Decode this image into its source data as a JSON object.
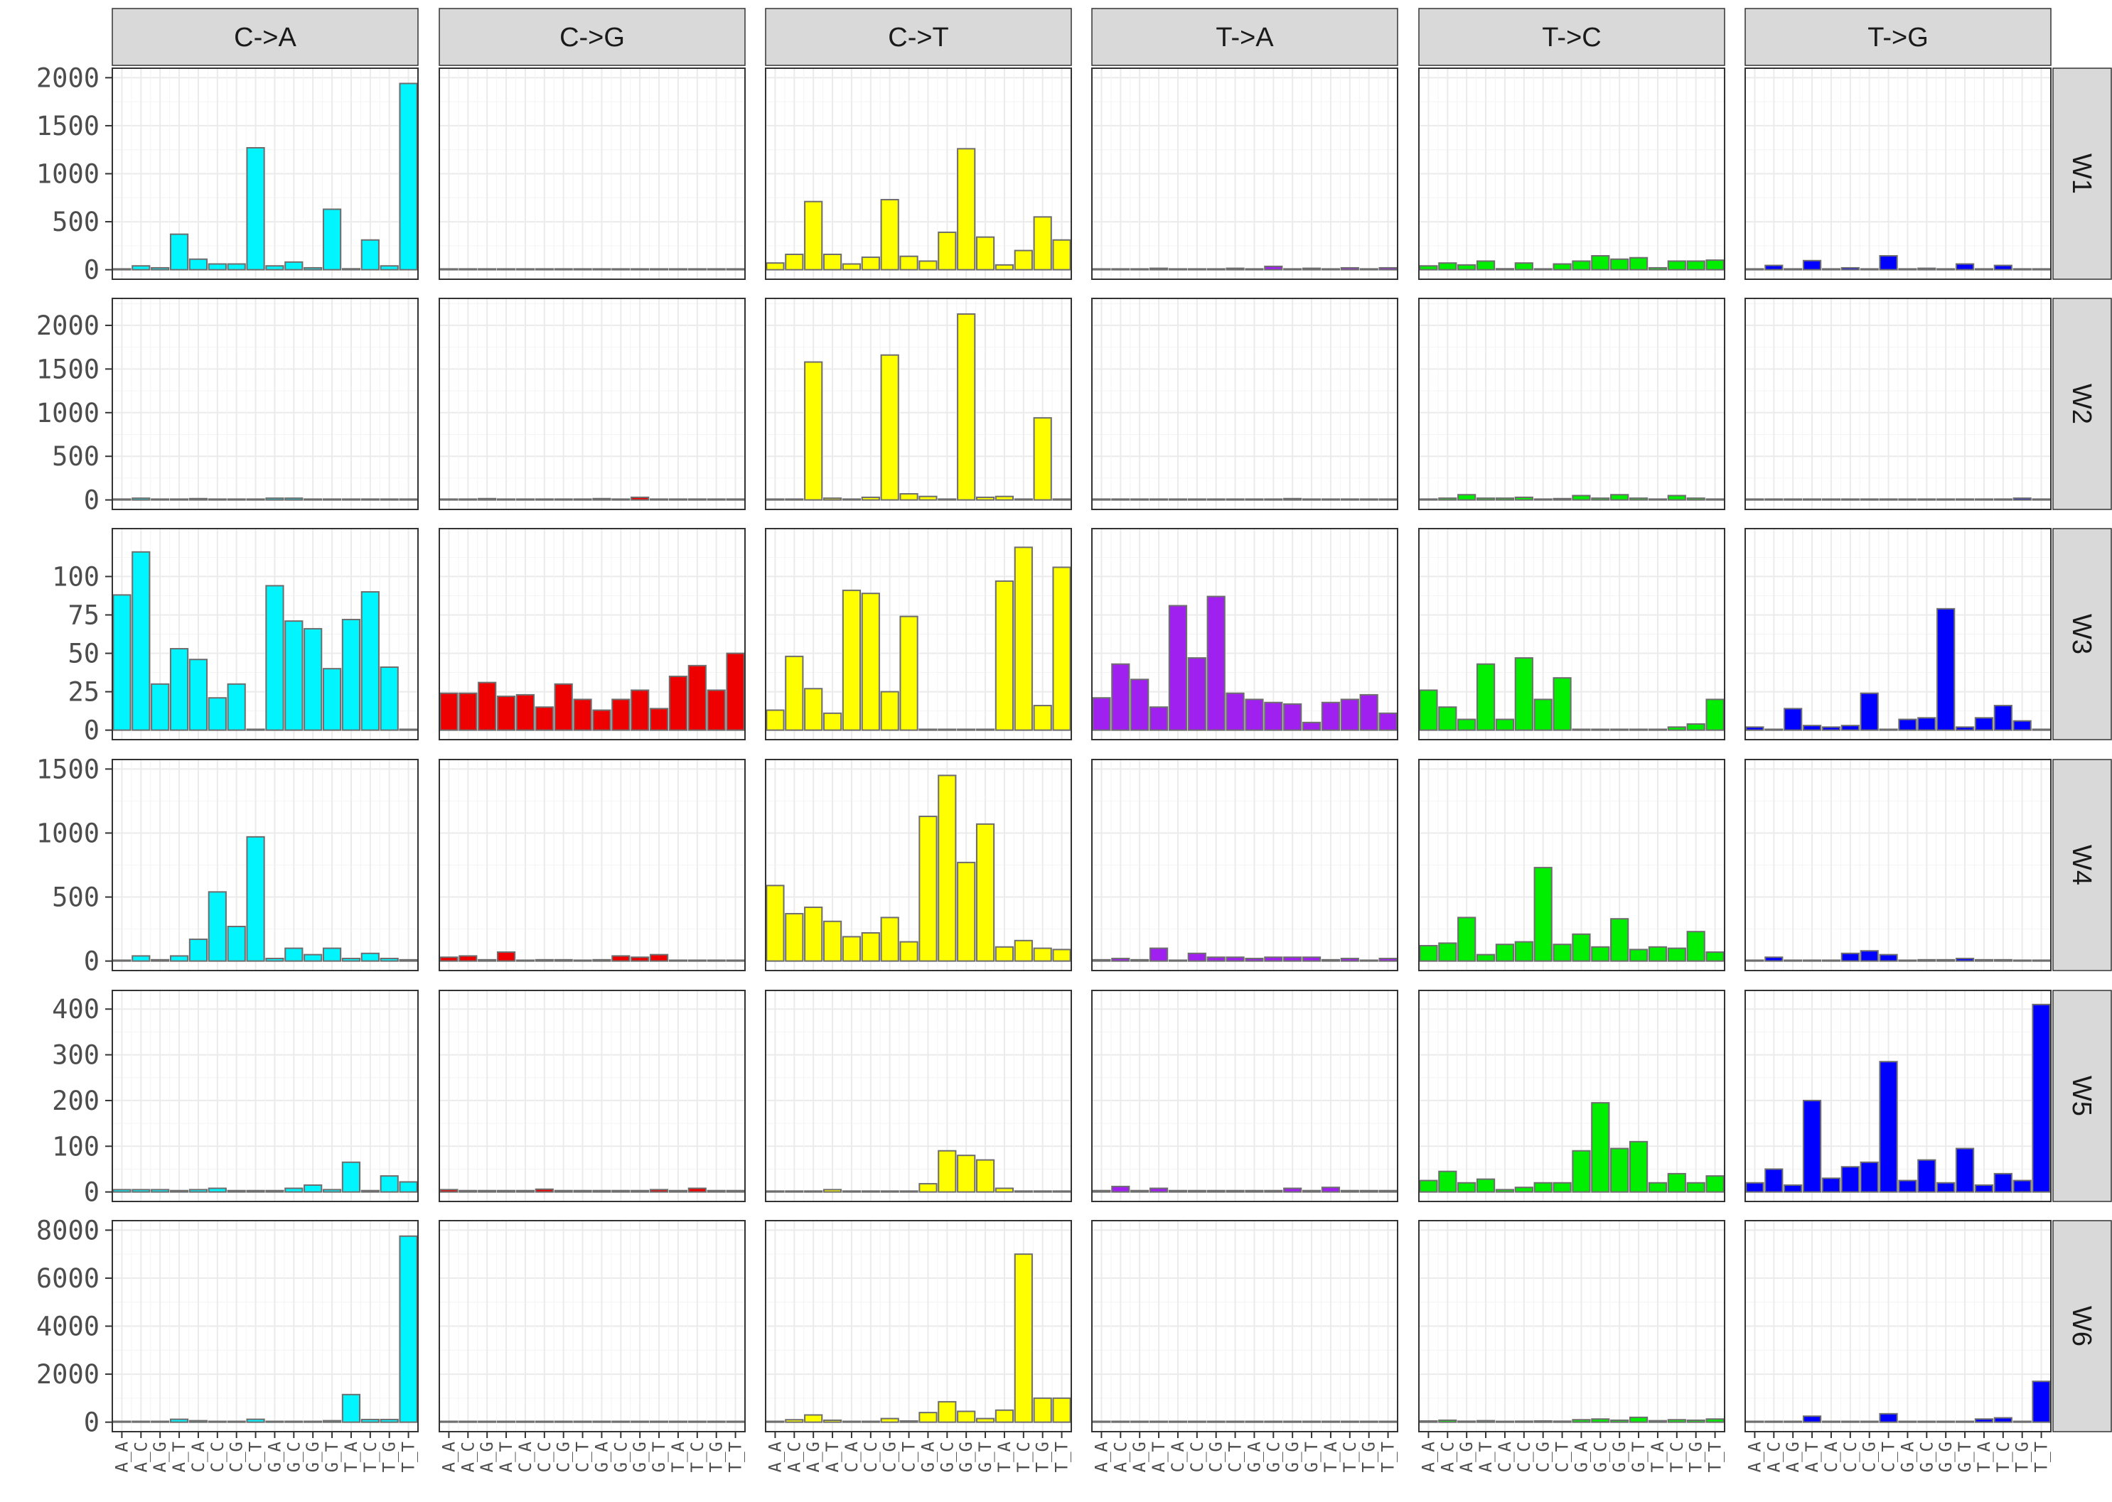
{
  "chart_data": {
    "type": "bar",
    "layout": "facet grid: columns = mutation type, rows = signature",
    "categories": [
      "A_A",
      "A_C",
      "A_G",
      "A_T",
      "C_A",
      "C_C",
      "C_G",
      "C_T",
      "G_A",
      "G_C",
      "G_G",
      "G_T",
      "T_A",
      "T_C",
      "T_G",
      "T_T"
    ],
    "columns": [
      "C->A",
      "C->G",
      "C->T",
      "T->A",
      "T->C",
      "T->G"
    ],
    "colors": {
      "C->A": "#00f5ff",
      "C->G": "#ee0000",
      "C->T": "#ffff00",
      "T->A": "#a020f0",
      "T->C": "#00ee00",
      "T->G": "#0000ff"
    },
    "bar_outline": "#6e6e6e",
    "strip_fill": "#d9d9d9",
    "grid": true,
    "rows": [
      {
        "label": "W1",
        "ylim": [
          0,
          2000
        ],
        "yticks": [
          0,
          500,
          1000,
          1500,
          2000
        ],
        "series": {
          "C->A": [
            5,
            40,
            20,
            370,
            110,
            60,
            60,
            1270,
            40,
            80,
            20,
            630,
            10,
            310,
            40,
            1940
          ],
          "C->G": [
            3,
            3,
            2,
            3,
            2,
            3,
            3,
            2,
            2,
            3,
            5,
            3,
            2,
            5,
            3,
            3
          ],
          "C->T": [
            70,
            160,
            710,
            160,
            60,
            130,
            730,
            140,
            90,
            390,
            1260,
            340,
            50,
            200,
            550,
            310
          ],
          "T->A": [
            5,
            5,
            3,
            15,
            3,
            8,
            5,
            15,
            5,
            35,
            5,
            15,
            5,
            20,
            5,
            20
          ],
          "T->C": [
            40,
            70,
            50,
            90,
            10,
            70,
            5,
            60,
            90,
            145,
            110,
            125,
            20,
            90,
            90,
            100
          ],
          "T->G": [
            5,
            45,
            5,
            95,
            5,
            20,
            5,
            145,
            5,
            15,
            5,
            60,
            5,
            45,
            5,
            5
          ]
        }
      },
      {
        "label": "W2",
        "ylim": [
          0,
          2200
        ],
        "yticks": [
          0,
          500,
          1000,
          1500,
          2000
        ],
        "series": {
          "C->A": [
            10,
            20,
            5,
            5,
            15,
            5,
            5,
            5,
            20,
            20,
            5,
            5,
            5,
            10,
            5,
            5
          ],
          "C->G": [
            5,
            5,
            15,
            5,
            5,
            10,
            5,
            5,
            15,
            5,
            30,
            5,
            5,
            10,
            5,
            10
          ],
          "C->T": [
            5,
            5,
            1580,
            20,
            5,
            30,
            1660,
            70,
            40,
            5,
            2130,
            30,
            40,
            5,
            940,
            5
          ],
          "T->A": [
            10,
            10,
            5,
            5,
            5,
            5,
            5,
            5,
            5,
            5,
            15,
            5,
            5,
            10,
            5,
            5
          ],
          "T->C": [
            10,
            20,
            60,
            20,
            20,
            30,
            5,
            15,
            50,
            20,
            60,
            20,
            5,
            50,
            20,
            10
          ],
          "T->G": [
            5,
            5,
            5,
            5,
            5,
            5,
            5,
            5,
            5,
            5,
            5,
            10,
            5,
            5,
            20,
            5
          ]
        }
      },
      {
        "label": "W3",
        "ylim": [
          0,
          125
        ],
        "yticks": [
          0,
          25,
          50,
          75,
          100
        ],
        "series": {
          "C->A": [
            88,
            116,
            30,
            53,
            46,
            21,
            30,
            0,
            94,
            71,
            66,
            40,
            72,
            90,
            41,
            0
          ],
          "C->G": [
            24,
            24,
            31,
            22,
            23,
            15,
            30,
            20,
            13,
            20,
            26,
            14,
            35,
            42,
            26,
            50
          ],
          "C->T": [
            13,
            48,
            27,
            11,
            91,
            89,
            25,
            74,
            0,
            0,
            0,
            0,
            97,
            119,
            16,
            106
          ],
          "T->A": [
            21,
            43,
            33,
            15,
            81,
            47,
            87,
            24,
            20,
            18,
            17,
            5,
            18,
            20,
            23,
            11
          ],
          "T->C": [
            26,
            15,
            7,
            43,
            7,
            47,
            20,
            34,
            0,
            0,
            0,
            0,
            0,
            2,
            4,
            20
          ],
          "T->G": [
            2,
            0,
            14,
            3,
            2,
            3,
            24,
            0,
            7,
            8,
            79,
            2,
            8,
            16,
            6,
            0
          ]
        }
      },
      {
        "label": "W4",
        "ylim": [
          0,
          1500
        ],
        "yticks": [
          0,
          500,
          1000,
          1500
        ],
        "series": {
          "C->A": [
            5,
            40,
            10,
            40,
            170,
            540,
            270,
            970,
            20,
            100,
            50,
            100,
            20,
            60,
            20,
            10
          ],
          "C->G": [
            30,
            40,
            10,
            70,
            5,
            10,
            10,
            5,
            10,
            40,
            30,
            50,
            5,
            5,
            5,
            5
          ],
          "C->T": [
            590,
            370,
            420,
            310,
            190,
            220,
            340,
            150,
            1130,
            1450,
            770,
            1070,
            110,
            160,
            100,
            90
          ],
          "T->A": [
            10,
            20,
            10,
            100,
            5,
            60,
            30,
            30,
            20,
            30,
            30,
            30,
            10,
            20,
            5,
            20
          ],
          "T->C": [
            120,
            140,
            340,
            50,
            130,
            150,
            730,
            130,
            210,
            110,
            330,
            90,
            110,
            100,
            230,
            70
          ],
          "T->G": [
            5,
            30,
            5,
            5,
            5,
            60,
            80,
            50,
            5,
            10,
            10,
            20,
            10,
            10,
            5,
            5
          ]
        }
      },
      {
        "label": "W5",
        "ylim": [
          0,
          420
        ],
        "yticks": [
          0,
          100,
          200,
          300,
          400
        ],
        "series": {
          "C->A": [
            5,
            5,
            5,
            3,
            5,
            8,
            3,
            3,
            3,
            8,
            15,
            5,
            65,
            3,
            35,
            22
          ],
          "C->G": [
            5,
            3,
            3,
            3,
            3,
            6,
            3,
            3,
            3,
            3,
            3,
            5,
            3,
            8,
            3,
            3
          ],
          "C->T": [
            2,
            2,
            2,
            5,
            2,
            2,
            2,
            2,
            18,
            90,
            80,
            70,
            8,
            2,
            2,
            2
          ],
          "T->A": [
            3,
            12,
            3,
            8,
            3,
            3,
            3,
            3,
            3,
            3,
            8,
            3,
            10,
            3,
            3,
            3
          ],
          "T->C": [
            25,
            45,
            20,
            28,
            5,
            10,
            20,
            20,
            90,
            195,
            95,
            110,
            20,
            40,
            20,
            35
          ],
          "T->G": [
            20,
            50,
            15,
            200,
            30,
            55,
            65,
            285,
            25,
            70,
            20,
            95,
            15,
            40,
            25,
            410
          ]
        }
      },
      {
        "label": "W6",
        "ylim": [
          0,
          8000
        ],
        "yticks": [
          0,
          2000,
          4000,
          6000,
          8000
        ],
        "series": {
          "C->A": [
            10,
            10,
            10,
            120,
            60,
            30,
            10,
            120,
            10,
            10,
            10,
            60,
            1150,
            110,
            110,
            7750
          ],
          "C->G": [
            3,
            3,
            3,
            3,
            3,
            3,
            3,
            3,
            3,
            3,
            3,
            3,
            3,
            3,
            3,
            3
          ],
          "C->T": [
            20,
            100,
            300,
            80,
            10,
            10,
            150,
            50,
            400,
            850,
            450,
            150,
            500,
            7000,
            1000,
            1000
          ],
          "T->A": [
            3,
            3,
            3,
            3,
            3,
            3,
            10,
            3,
            3,
            3,
            3,
            3,
            3,
            3,
            3,
            10
          ],
          "T->C": [
            50,
            80,
            40,
            60,
            30,
            40,
            50,
            40,
            100,
            130,
            80,
            200,
            60,
            100,
            80,
            130
          ],
          "T->G": [
            30,
            30,
            30,
            250,
            30,
            30,
            30,
            350,
            30,
            30,
            30,
            30,
            130,
            180,
            30,
            1700
          ]
        }
      }
    ]
  }
}
